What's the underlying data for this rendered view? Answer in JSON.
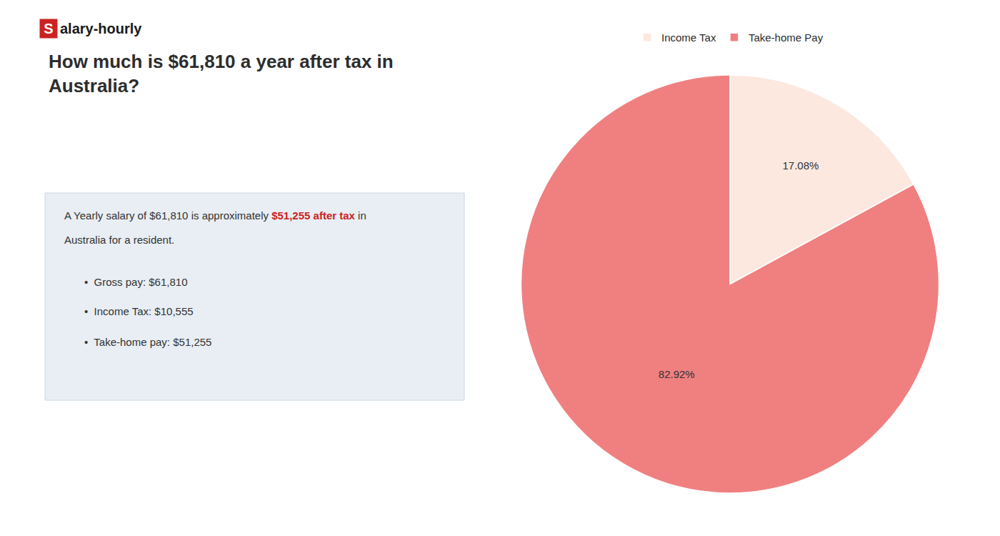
{
  "chart_data": {
    "type": "pie",
    "title": "How much is $61,810 a year after tax in\nAustralia?",
    "categories": [
      "Income Tax",
      "Take-home Pay"
    ],
    "values": [
      17.08,
      82.92
    ],
    "value_labels": [
      "17.08%",
      "82.92%"
    ],
    "colors": [
      "#fce8df",
      "#f08080"
    ],
    "data_labels": true,
    "legend": "top",
    "annotations": [
      {
        "text": "S",
        "color": "#cc2222"
      },
      {
        "text": "alary-hourly"
      },
      {
        "text": "A Yearly salary of $61,810 is approximately "
      },
      {
        "text": "$51,255 after tax",
        "color": "#cc2222"
      },
      {
        "text": " in"
      },
      {
        "text": "Australia for a resident."
      },
      {
        "text": "•  Gross pay: $61,810"
      },
      {
        "text": "•  Income Tax: $10,555"
      },
      {
        "text": "•  Take-home pay: $51,255"
      }
    ]
  }
}
